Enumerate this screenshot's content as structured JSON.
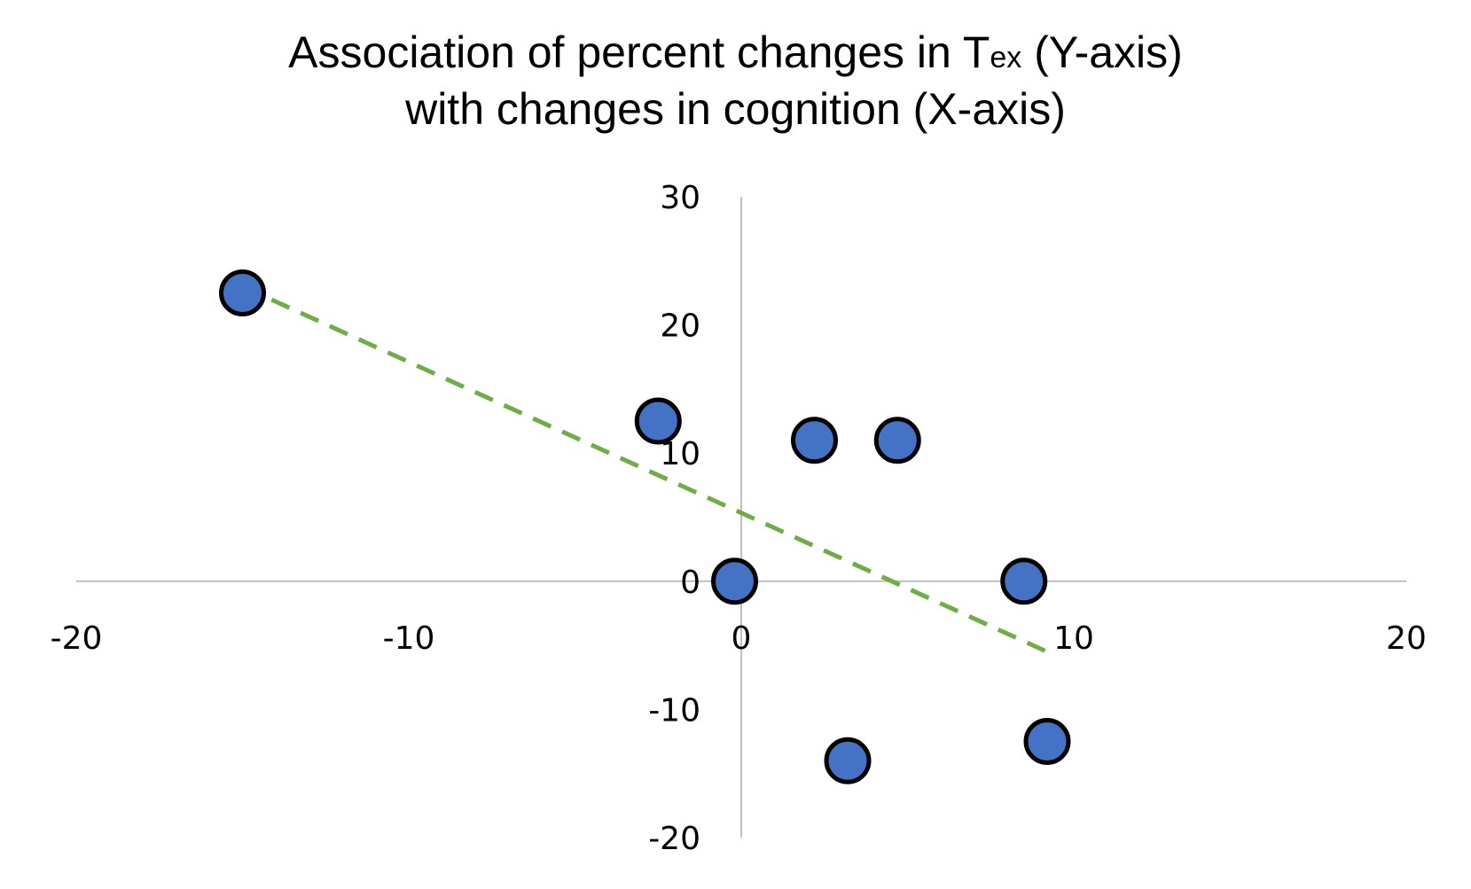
{
  "chart_data": {
    "type": "scatter",
    "title": {
      "line1_pre": "Association of percent changes in T",
      "line1_sub": "ex",
      "line1_post": " (Y-axis)",
      "line2": "with changes in cognition (X-axis)"
    },
    "xlabel": "",
    "ylabel": "",
    "xlim": [
      -20,
      20
    ],
    "ylim": [
      -20,
      30
    ],
    "x_ticks": [
      -20,
      -10,
      0,
      10,
      20
    ],
    "y_ticks": [
      30,
      20,
      10,
      0,
      -10,
      -20
    ],
    "grid": false,
    "legend": "none",
    "series": [
      {
        "x": [
          -15,
          -2.5,
          -0.2,
          2.2,
          4.7,
          8.5,
          3.2,
          9.2
        ],
        "y": [
          22.5,
          12.5,
          0,
          11,
          11,
          0,
          -14,
          -12.5
        ]
      }
    ],
    "trendline": {
      "style": "dashed",
      "x": [
        -15,
        9.2
      ],
      "y": [
        23,
        -5.5
      ]
    },
    "colors": {
      "marker_fill": "#4472C4",
      "marker_edge": "#000000",
      "trendline": "#70AD47",
      "axis": "#bfbfbf"
    }
  }
}
